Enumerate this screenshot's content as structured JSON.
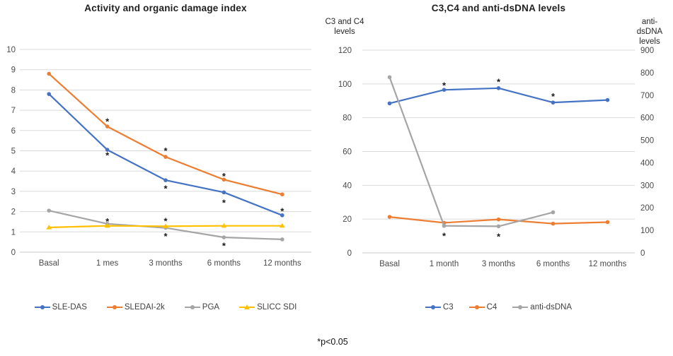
{
  "footnote": "*p<0.05",
  "colors": {
    "blue": "#4472C4",
    "orange": "#ED7D31",
    "gray": "#A5A5A5",
    "yellow": "#FFC000",
    "gridline": "#DADADA",
    "axis_line": "#C9C9C9",
    "tick_text": "#4a4a4a",
    "title_text": "#1f1f1f"
  },
  "chart_data": [
    {
      "type": "line",
      "title": "Activity and organic damage index",
      "categories": [
        "Basal",
        "1 mes",
        "3 months",
        "6 months",
        "12 months"
      ],
      "left_axis": {
        "min": 0,
        "max": 10,
        "step": 1
      },
      "series": [
        {
          "name": "SLE-DAS",
          "color": "#4472C4",
          "marker": "circle",
          "axis": "left",
          "values": [
            7.8,
            5.05,
            3.55,
            2.95,
            1.82
          ]
        },
        {
          "name": "SLEDAI-2k",
          "color": "#ED7D31",
          "marker": "circle",
          "axis": "left",
          "values": [
            8.8,
            6.2,
            4.7,
            3.58,
            2.85
          ]
        },
        {
          "name": "PGA",
          "color": "#A5A5A5",
          "marker": "circle",
          "axis": "left",
          "values": [
            2.05,
            1.4,
            1.2,
            0.73,
            0.63
          ]
        },
        {
          "name": "SLICC SDI",
          "color": "#FFC000",
          "marker": "triangle",
          "axis": "left",
          "values": [
            1.22,
            1.3,
            1.28,
            1.3,
            1.3
          ]
        }
      ],
      "annotations": [
        {
          "category": 1,
          "y": 6.5,
          "text": "*"
        },
        {
          "category": 1,
          "y": 4.82,
          "text": "*"
        },
        {
          "category": 1,
          "y": 1.57,
          "text": "*"
        },
        {
          "category": 2,
          "y": 5.05,
          "text": "*"
        },
        {
          "category": 2,
          "y": 3.18,
          "text": "*"
        },
        {
          "category": 2,
          "y": 1.58,
          "text": "*"
        },
        {
          "category": 2,
          "y": 0.84,
          "text": "*"
        },
        {
          "category": 3,
          "y": 3.8,
          "text": "*"
        },
        {
          "category": 3,
          "y": 2.5,
          "text": "*"
        },
        {
          "category": 3,
          "y": 0.36,
          "text": "*"
        },
        {
          "category": 4,
          "y": 2.07,
          "text": "*"
        }
      ]
    },
    {
      "type": "line",
      "title": "C3,C4 and anti-dsDNA levels",
      "categories": [
        "Basal",
        "1 month",
        "3 months",
        "6 months",
        "12 months"
      ],
      "left_axis": {
        "title_lines": [
          "C3 and C4",
          "levels"
        ],
        "min": 0,
        "max": 120,
        "step": 20
      },
      "right_axis": {
        "title_lines": [
          "anti-",
          "dsDNA",
          "levels"
        ],
        "min": 0,
        "max": 900,
        "step": 100
      },
      "series": [
        {
          "name": "C3",
          "color": "#4472C4",
          "marker": "circle",
          "axis": "left",
          "values": [
            88.5,
            96.5,
            97.5,
            89,
            90.5
          ]
        },
        {
          "name": "C4",
          "color": "#ED7D31",
          "marker": "circle",
          "axis": "left",
          "values": [
            21.3,
            17.8,
            19.8,
            17.3,
            18.2
          ]
        },
        {
          "name": "anti-dsDNA",
          "color": "#A5A5A5",
          "marker": "circle",
          "axis": "right",
          "values": [
            780,
            120,
            118,
            180,
            null
          ]
        }
      ],
      "annotations": [
        {
          "category": 1,
          "y": 99.8,
          "text": "*"
        },
        {
          "category": 2,
          "y": 101.8,
          "text": "*"
        },
        {
          "category": 3,
          "y": 93.2,
          "text": "*"
        },
        {
          "category": 1,
          "y": 10.6,
          "text": "*"
        },
        {
          "category": 2,
          "y": 10.3,
          "text": "*"
        }
      ]
    }
  ]
}
